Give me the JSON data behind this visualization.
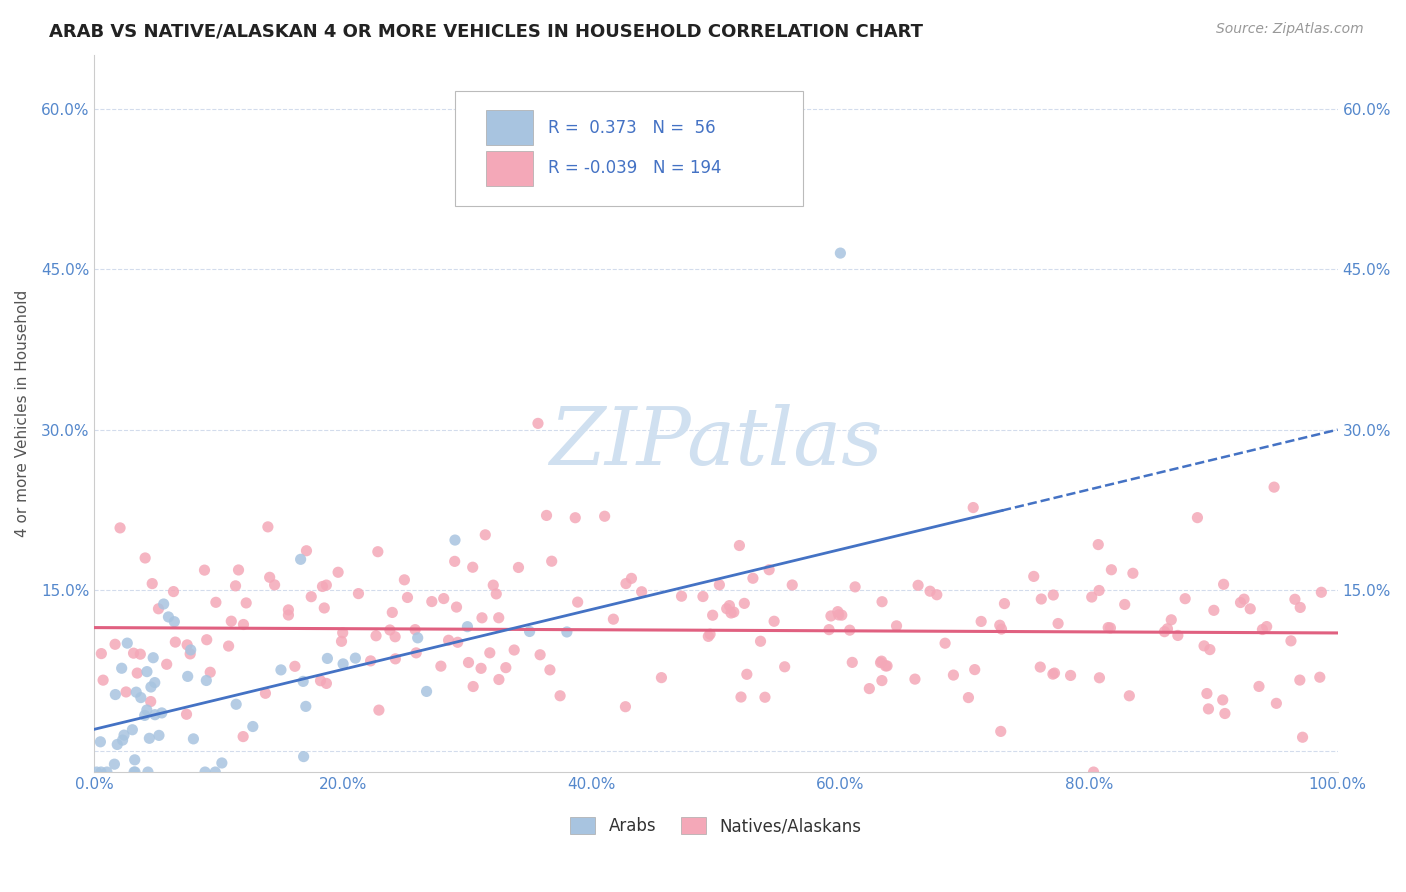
{
  "title": "ARAB VS NATIVE/ALASKAN 4 OR MORE VEHICLES IN HOUSEHOLD CORRELATION CHART",
  "source_text": "Source: ZipAtlas.com",
  "ylabel": "4 or more Vehicles in Household",
  "xlim": [
    0,
    100
  ],
  "ylim": [
    -2,
    65
  ],
  "yticks": [
    0,
    15,
    30,
    45,
    60
  ],
  "xticks": [
    0,
    20,
    40,
    60,
    80,
    100
  ],
  "xtick_labels": [
    "0.0%",
    "20.0%",
    "40.0%",
    "60.0%",
    "80.0%",
    "100.0%"
  ],
  "ytick_labels": [
    "",
    "15.0%",
    "30.0%",
    "45.0%",
    "60.0%"
  ],
  "arab_R": 0.373,
  "arab_N": 56,
  "native_R": -0.039,
  "native_N": 194,
  "arab_color": "#a8c4e0",
  "native_color": "#f4a8b8",
  "arab_line_color": "#4472c4",
  "native_line_color": "#e06080",
  "legend_text_color": "#4472c4",
  "watermark_text": "ZIPatlas",
  "watermark_color": "#d0e0f0",
  "background_color": "#ffffff",
  "title_fontsize": 13,
  "tick_label_color": "#5588cc",
  "arab_intercept": 2.0,
  "arab_slope": 0.28,
  "native_intercept": 11.5,
  "native_slope": -0.005,
  "grid_color": "#c8d4e8",
  "grid_alpha": 0.8
}
